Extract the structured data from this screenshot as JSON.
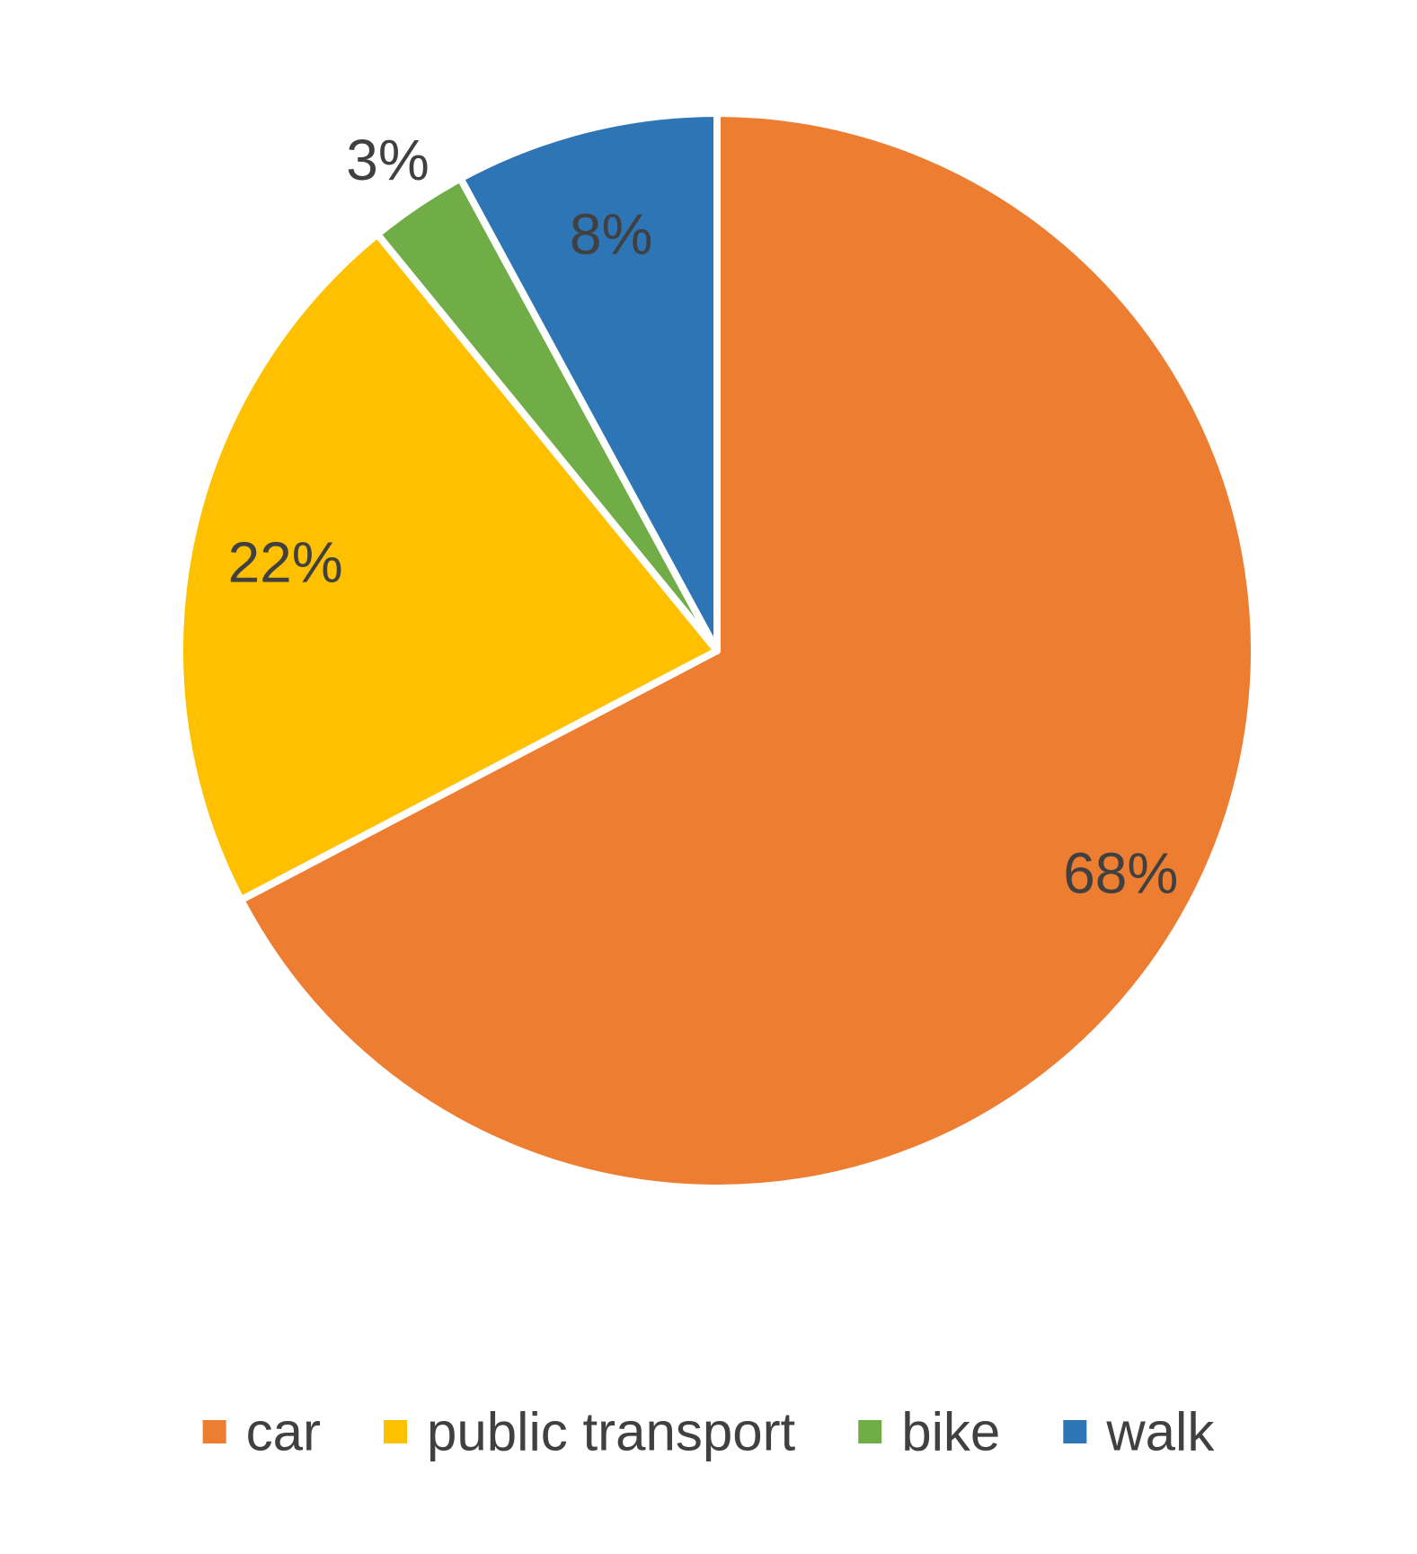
{
  "chart_data": {
    "type": "pie",
    "title": "",
    "slices": [
      {
        "label": "car",
        "value": 68,
        "display": "68%",
        "color": "#ED7D31"
      },
      {
        "label": "public transport",
        "value": 22,
        "display": "22%",
        "color": "#FFC000"
      },
      {
        "label": "bike",
        "value": 3,
        "display": "3%",
        "color": "#70AD47"
      },
      {
        "label": "walk",
        "value": 8,
        "display": "8%",
        "color": "#2E75B6"
      }
    ],
    "start_angle_deg": 0,
    "direction": "clockwise",
    "legend_position": "bottom",
    "label_color": "#404040"
  }
}
